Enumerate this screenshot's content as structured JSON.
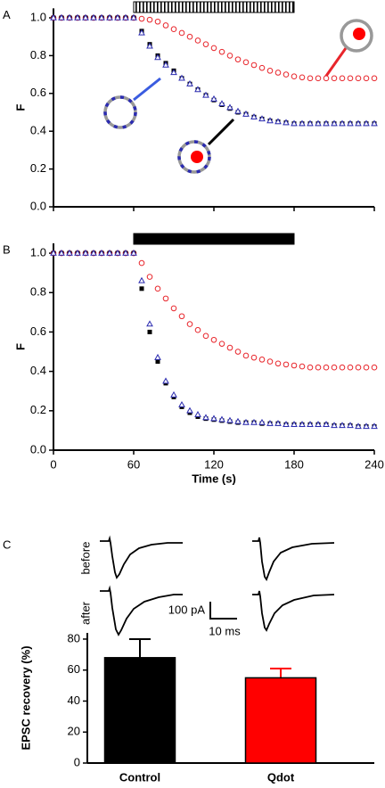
{
  "chart_data": [
    {
      "type": "scatter",
      "panel_label": "A",
      "y_label": "F",
      "x": [
        0,
        6,
        12,
        18,
        24,
        30,
        36,
        42,
        48,
        54,
        60,
        66,
        72,
        78,
        84,
        90,
        96,
        102,
        108,
        114,
        120,
        126,
        132,
        138,
        144,
        150,
        156,
        162,
        168,
        174,
        180,
        186,
        192,
        198,
        204,
        210,
        216,
        222,
        228,
        234,
        240
      ],
      "series": [
        {
          "color": "#e8252b",
          "marker": "circle",
          "values": [
            1,
            1,
            1,
            1,
            1,
            1,
            1,
            1,
            1,
            1,
            1,
            0.995,
            0.99,
            0.98,
            0.96,
            0.94,
            0.92,
            0.9,
            0.88,
            0.86,
            0.84,
            0.82,
            0.8,
            0.78,
            0.765,
            0.75,
            0.735,
            0.72,
            0.71,
            0.7,
            0.69,
            0.685,
            0.68,
            0.68,
            0.68,
            0.68,
            0.68,
            0.68,
            0.68,
            0.68,
            0.68
          ]
        },
        {
          "color": "#000000",
          "marker": "square",
          "values": [
            1,
            1,
            1,
            1,
            1,
            1,
            1,
            1,
            1,
            1,
            1,
            0.93,
            0.86,
            0.8,
            0.76,
            0.72,
            0.68,
            0.65,
            0.62,
            0.59,
            0.565,
            0.54,
            0.52,
            0.5,
            0.49,
            0.475,
            0.465,
            0.455,
            0.45,
            0.445,
            0.44,
            0.44,
            0.44,
            0.44,
            0.44,
            0.44,
            0.44,
            0.44,
            0.44,
            0.44,
            0.44
          ]
        },
        {
          "color": "#2b2bb0",
          "marker": "triangle",
          "values": [
            1,
            1,
            1,
            1,
            1,
            1,
            1,
            1,
            1,
            1,
            1,
            0.92,
            0.85,
            0.79,
            0.75,
            0.71,
            0.68,
            0.65,
            0.62,
            0.59,
            0.57,
            0.545,
            0.525,
            0.505,
            0.49,
            0.475,
            0.465,
            0.455,
            0.45,
            0.445,
            0.44,
            0.44,
            0.44,
            0.44,
            0.44,
            0.44,
            0.44,
            0.44,
            0.44,
            0.44,
            0.44
          ]
        }
      ],
      "stimulus": {
        "range": [
          60,
          180
        ],
        "style": "hatched"
      },
      "xlim": [
        0,
        240
      ],
      "xticks": [
        0,
        60,
        120,
        180,
        240
      ],
      "xtick_labels": false,
      "ylim": [
        0,
        1.05
      ],
      "yticks": [
        {
          "value": 0,
          "label": "0.0"
        },
        0.2,
        0.4,
        0.6,
        0.8,
        {
          "value": 1,
          "label": "1.0"
        }
      ]
    },
    {
      "type": "scatter",
      "panel_label": "B",
      "y_label": "F",
      "x_label": "Time (s)",
      "x": [
        0,
        6,
        12,
        18,
        24,
        30,
        36,
        42,
        48,
        54,
        60,
        66,
        72,
        78,
        84,
        90,
        96,
        102,
        108,
        114,
        120,
        126,
        132,
        138,
        144,
        150,
        156,
        162,
        168,
        174,
        180,
        186,
        192,
        198,
        204,
        210,
        216,
        222,
        228,
        234,
        240
      ],
      "series": [
        {
          "color": "#e8252b",
          "marker": "circle",
          "values": [
            1,
            1,
            1,
            1,
            1,
            1,
            1,
            1,
            1,
            1,
            1,
            0.95,
            0.88,
            0.82,
            0.77,
            0.72,
            0.68,
            0.64,
            0.61,
            0.58,
            0.56,
            0.54,
            0.52,
            0.5,
            0.48,
            0.47,
            0.46,
            0.45,
            0.44,
            0.435,
            0.43,
            0.425,
            0.42,
            0.42,
            0.42,
            0.42,
            0.42,
            0.42,
            0.42,
            0.42,
            0.42
          ]
        },
        {
          "color": "#000000",
          "marker": "square",
          "values": [
            1,
            1,
            1,
            1,
            1,
            1,
            1,
            1,
            1,
            1,
            1,
            0.82,
            0.6,
            0.45,
            0.34,
            0.27,
            0.22,
            0.19,
            0.17,
            0.16,
            0.155,
            0.15,
            0.145,
            0.14,
            0.14,
            0.14,
            0.135,
            0.135,
            0.135,
            0.13,
            0.13,
            0.13,
            0.13,
            0.13,
            0.13,
            0.125,
            0.125,
            0.125,
            0.12,
            0.12,
            0.12
          ]
        },
        {
          "color": "#2b2bb0",
          "marker": "triangle",
          "values": [
            1,
            1,
            1,
            1,
            1,
            1,
            1,
            1,
            1,
            1,
            1,
            0.86,
            0.64,
            0.47,
            0.35,
            0.28,
            0.23,
            0.2,
            0.18,
            0.165,
            0.16,
            0.155,
            0.15,
            0.145,
            0.14,
            0.14,
            0.14,
            0.135,
            0.135,
            0.13,
            0.13,
            0.13,
            0.13,
            0.13,
            0.13,
            0.125,
            0.125,
            0.125,
            0.12,
            0.12,
            0.12
          ]
        }
      ],
      "stimulus": {
        "range": [
          60,
          180
        ],
        "style": "solid"
      },
      "xlim": [
        0,
        240
      ],
      "xticks": [
        0,
        60,
        120,
        180,
        240
      ],
      "xtick_labels": true,
      "ylim": [
        0,
        1.05
      ],
      "yticks": [
        {
          "value": 0,
          "label": "0.0"
        },
        0.2,
        0.4,
        0.6,
        0.8,
        {
          "value": 1,
          "label": "1.0"
        }
      ]
    },
    {
      "type": "bar",
      "panel_label": "C",
      "y_label": "EPSC recovery (%)",
      "categories": [
        "Control",
        "Qdot"
      ],
      "values": [
        68,
        55
      ],
      "errors": [
        12,
        6
      ],
      "colors": [
        "#000000",
        "#ff0000"
      ],
      "ylim": [
        0,
        84
      ],
      "yticks": [
        0,
        20,
        40,
        60,
        80
      ],
      "trace_labels": [
        "before",
        "after"
      ],
      "scale_labels": [
        "100 pA",
        "10 ms"
      ]
    }
  ]
}
